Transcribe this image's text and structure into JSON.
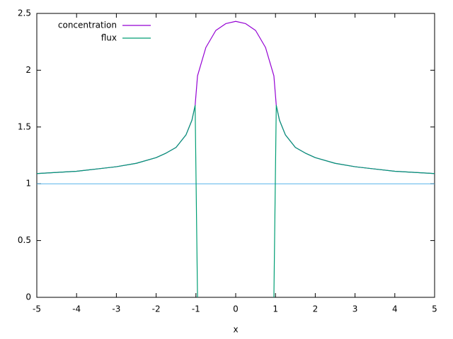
{
  "chart_data": {
    "type": "line",
    "xlabel": "x",
    "x": [
      -5,
      -4.5,
      -4,
      -3.5,
      -3,
      -2.5,
      -2,
      -1.75,
      -1.5,
      -1.25,
      -1.1,
      -1.02,
      -0.96,
      -0.75,
      -0.5,
      -0.25,
      0,
      0.25,
      0.5,
      0.75,
      0.96,
      1.02,
      1.1,
      1.25,
      1.5,
      1.75,
      2,
      2.5,
      3,
      3.5,
      4,
      4.5,
      5
    ],
    "series": [
      {
        "name": "concentration",
        "color": "#9400d3",
        "values": [
          1.09,
          1.1,
          1.11,
          1.13,
          1.15,
          1.18,
          1.23,
          1.27,
          1.32,
          1.43,
          1.56,
          1.69,
          1.95,
          2.2,
          2.35,
          2.41,
          2.43,
          2.41,
          2.35,
          2.2,
          1.95,
          1.69,
          1.56,
          1.43,
          1.32,
          1.27,
          1.23,
          1.18,
          1.15,
          1.13,
          1.11,
          1.1,
          1.09
        ]
      },
      {
        "name": "flux",
        "color": "#009e73",
        "values": [
          1.09,
          1.1,
          1.11,
          1.13,
          1.15,
          1.18,
          1.23,
          1.27,
          1.32,
          1.43,
          1.56,
          1.69,
          0,
          null,
          null,
          null,
          null,
          null,
          null,
          null,
          0,
          1.69,
          1.56,
          1.43,
          1.32,
          1.27,
          1.23,
          1.18,
          1.15,
          1.13,
          1.11,
          1.1,
          1.09
        ]
      }
    ],
    "reference_line": {
      "value": 1,
      "color": "#56b4e9"
    },
    "xlim": [
      -5,
      5
    ],
    "xticks": [
      -5,
      -4,
      -3,
      -2,
      -1,
      0,
      1,
      2,
      3,
      4,
      5
    ],
    "ylim": [
      0,
      2.5
    ],
    "yticks": [
      0,
      0.5,
      1,
      1.5,
      2,
      2.5
    ],
    "legend": "top-left"
  }
}
